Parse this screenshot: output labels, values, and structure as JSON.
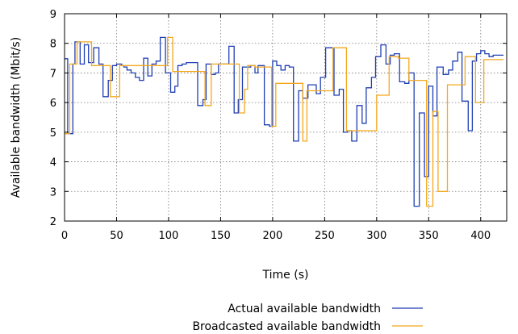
{
  "chart_data": {
    "type": "line",
    "xlabel": "Time (s)",
    "ylabel": "Available bandwidth (Mbit/s)",
    "xlim": [
      0,
      425
    ],
    "ylim": [
      2,
      9
    ],
    "xticks": [
      0,
      50,
      100,
      150,
      200,
      250,
      300,
      350,
      400
    ],
    "yticks": [
      2,
      3,
      4,
      5,
      6,
      7,
      8,
      9
    ],
    "grid": true,
    "legend_position": "bottom-right",
    "series": [
      {
        "name": "Actual available bandwidth",
        "color": "#1f3fb4",
        "steps": [
          [
            0,
            7.48
          ],
          [
            3,
            4.95
          ],
          [
            8,
            7.3
          ],
          [
            10,
            8.05
          ],
          [
            14,
            8.05
          ],
          [
            15,
            7.3
          ],
          [
            19,
            7.95
          ],
          [
            23,
            7.35
          ],
          [
            28,
            7.85
          ],
          [
            33,
            7.3
          ],
          [
            37,
            6.2
          ],
          [
            42,
            6.75
          ],
          [
            46,
            7.25
          ],
          [
            50,
            7.3
          ],
          [
            55,
            7.25
          ],
          [
            57,
            7.2
          ],
          [
            60,
            7.1
          ],
          [
            64,
            7.0
          ],
          [
            68,
            6.85
          ],
          [
            72,
            6.75
          ],
          [
            76,
            7.5
          ],
          [
            80,
            6.9
          ],
          [
            84,
            7.3
          ],
          [
            88,
            7.4
          ],
          [
            92,
            8.2
          ],
          [
            97,
            7.0
          ],
          [
            102,
            6.35
          ],
          [
            106,
            6.55
          ],
          [
            109,
            7.25
          ],
          [
            113,
            7.3
          ],
          [
            117,
            7.35
          ],
          [
            120,
            7.35
          ],
          [
            124,
            7.35
          ],
          [
            128,
            5.9
          ],
          [
            133,
            6.1
          ],
          [
            136,
            7.3
          ],
          [
            141,
            6.95
          ],
          [
            145,
            7.0
          ],
          [
            148,
            7.3
          ],
          [
            153,
            7.3
          ],
          [
            158,
            7.9
          ],
          [
            163,
            5.65
          ],
          [
            167,
            6.1
          ],
          [
            171,
            7.2
          ],
          [
            175,
            7.2
          ],
          [
            179,
            7.25
          ],
          [
            183,
            7.0
          ],
          [
            186,
            7.25
          ],
          [
            192,
            5.25
          ],
          [
            197,
            5.2
          ],
          [
            200,
            7.4
          ],
          [
            204,
            7.25
          ],
          [
            208,
            7.1
          ],
          [
            212,
            7.25
          ],
          [
            216,
            7.2
          ],
          [
            220,
            4.7
          ],
          [
            225,
            6.4
          ],
          [
            229,
            6.15
          ],
          [
            234,
            6.6
          ],
          [
            238,
            6.6
          ],
          [
            242,
            6.3
          ],
          [
            246,
            6.85
          ],
          [
            251,
            7.85
          ],
          [
            255,
            7.85
          ],
          [
            259,
            6.25
          ],
          [
            264,
            6.45
          ],
          [
            268,
            5.0
          ],
          [
            272,
            5.05
          ],
          [
            276,
            4.7
          ],
          [
            281,
            5.9
          ],
          [
            286,
            5.3
          ],
          [
            290,
            6.5
          ],
          [
            295,
            6.85
          ],
          [
            299,
            7.55
          ],
          [
            304,
            7.95
          ],
          [
            309,
            7.3
          ],
          [
            313,
            7.6
          ],
          [
            317,
            7.65
          ],
          [
            322,
            6.7
          ],
          [
            327,
            6.65
          ],
          [
            331,
            7.0
          ],
          [
            336,
            2.5
          ],
          [
            341,
            5.65
          ],
          [
            346,
            3.5
          ],
          [
            350,
            6.55
          ],
          [
            354,
            5.55
          ],
          [
            358,
            7.2
          ],
          [
            364,
            6.95
          ],
          [
            369,
            7.1
          ],
          [
            373,
            7.4
          ],
          [
            378,
            7.7
          ],
          [
            382,
            6.05
          ],
          [
            388,
            5.05
          ],
          [
            392,
            7.4
          ],
          [
            396,
            7.65
          ],
          [
            400,
            7.75
          ],
          [
            404,
            7.65
          ],
          [
            408,
            7.55
          ],
          [
            412,
            7.6
          ],
          [
            417,
            7.6
          ]
        ]
      },
      {
        "name": "Broadcasted available bandwidth",
        "color": "#f4a81c",
        "steps": [
          [
            0,
            4.95
          ],
          [
            5,
            7.3
          ],
          [
            12,
            8.05
          ],
          [
            26,
            7.25
          ],
          [
            44,
            6.2
          ],
          [
            53,
            7.25
          ],
          [
            99,
            8.2
          ],
          [
            104,
            7.05
          ],
          [
            135,
            5.9
          ],
          [
            141,
            7.3
          ],
          [
            168,
            5.65
          ],
          [
            173,
            6.45
          ],
          [
            176,
            7.25
          ],
          [
            183,
            7.2
          ],
          [
            199,
            5.2
          ],
          [
            203,
            6.65
          ],
          [
            229,
            4.7
          ],
          [
            233,
            6.4
          ],
          [
            258,
            7.85
          ],
          [
            271,
            5.05
          ],
          [
            276,
            5.05
          ],
          [
            289,
            5.05
          ],
          [
            300,
            6.25
          ],
          [
            312,
            7.55
          ],
          [
            321,
            7.5
          ],
          [
            331,
            6.75
          ],
          [
            348,
            2.5
          ],
          [
            354,
            5.7
          ],
          [
            359,
            3.0
          ],
          [
            368,
            6.6
          ],
          [
            385,
            7.55
          ],
          [
            395,
            6.0
          ],
          [
            403,
            7.45
          ],
          [
            417,
            7.45
          ]
        ]
      }
    ]
  }
}
